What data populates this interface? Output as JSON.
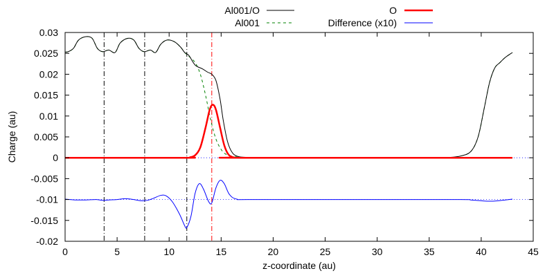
{
  "chart_data": {
    "type": "line",
    "title": "",
    "xlabel": "z-coordinate (au)",
    "ylabel": "Charge (au)",
    "xlim": [
      0,
      45
    ],
    "ylim": [
      -0.02,
      0.03
    ],
    "xticks": [
      0,
      5,
      10,
      15,
      20,
      25,
      30,
      35,
      40,
      45
    ],
    "xtick_labels": [
      "0",
      "5",
      "10",
      "15",
      "20",
      "25",
      "30",
      "35",
      "40",
      "45"
    ],
    "yticks": [
      -0.02,
      -0.015,
      -0.01,
      -0.005,
      0,
      0.005,
      0.01,
      0.015,
      0.02,
      0.025,
      0.03
    ],
    "ytick_labels": [
      "-0.02",
      "-0.015",
      "-0.01",
      "-0.005",
      "0",
      "0.005",
      "0.01",
      "0.015",
      "0.02",
      "0.025",
      "0.03"
    ],
    "grid": false,
    "legend_position": "top",
    "vertical_lines": [
      {
        "x": 3.75,
        "style": "dash-dot",
        "color": "#000000"
      },
      {
        "x": 7.65,
        "style": "dash-dot",
        "color": "#000000"
      },
      {
        "x": 11.7,
        "style": "dash-dot",
        "color": "#000000"
      },
      {
        "x": 14.1,
        "style": "dash-dot",
        "color": "#ff0000"
      }
    ],
    "reference_lines": [
      {
        "y": 0,
        "style": "dotted",
        "color": "#0000ff"
      },
      {
        "y": -0.01,
        "style": "dotted",
        "color": "#0000ff"
      }
    ],
    "series": [
      {
        "name": "Al001/O",
        "color": "#000000",
        "style": "solid",
        "width": 1,
        "points": [
          [
            0,
            0.0253
          ],
          [
            0.3,
            0.0254
          ],
          [
            0.8,
            0.0262
          ],
          [
            1.3,
            0.0282
          ],
          [
            2,
            0.029
          ],
          [
            2.6,
            0.0286
          ],
          [
            3.1,
            0.0262
          ],
          [
            3.6,
            0.0254
          ],
          [
            4.2,
            0.0258
          ],
          [
            4.8,
            0.0252
          ],
          [
            5.3,
            0.0275
          ],
          [
            6,
            0.0286
          ],
          [
            6.6,
            0.0282
          ],
          [
            7.1,
            0.0262
          ],
          [
            7.6,
            0.0254
          ],
          [
            8.2,
            0.0258
          ],
          [
            8.7,
            0.0252
          ],
          [
            9.2,
            0.0272
          ],
          [
            9.8,
            0.0282
          ],
          [
            10.5,
            0.0278
          ],
          [
            11.1,
            0.0265
          ],
          [
            11.5,
            0.0252
          ],
          [
            11.9,
            0.0245
          ],
          [
            12.5,
            0.0222
          ],
          [
            13.2,
            0.0213
          ],
          [
            13.7,
            0.0205
          ],
          [
            14.1,
            0.02
          ],
          [
            14.5,
            0.0185
          ],
          [
            14.9,
            0.014
          ],
          [
            15.2,
            0.009
          ],
          [
            15.6,
            0.004
          ],
          [
            16,
            0.0015
          ],
          [
            16.5,
            0.0004
          ],
          [
            17.5,
            0.0001
          ],
          [
            20,
            0
          ],
          [
            30,
            0
          ],
          [
            36,
            0
          ],
          [
            37,
            0.0001
          ],
          [
            38,
            0.0004
          ],
          [
            39,
            0.0015
          ],
          [
            39.7,
            0.005
          ],
          [
            40.3,
            0.012
          ],
          [
            40.8,
            0.018
          ],
          [
            41.3,
            0.0215
          ],
          [
            41.8,
            0.0228
          ],
          [
            42.3,
            0.024
          ],
          [
            43,
            0.0252
          ]
        ]
      },
      {
        "name": "Al001",
        "color": "#008000",
        "style": "dashed",
        "width": 1,
        "points": [
          [
            0,
            0.0253
          ],
          [
            0.3,
            0.0254
          ],
          [
            0.8,
            0.0262
          ],
          [
            1.3,
            0.0282
          ],
          [
            2,
            0.029
          ],
          [
            2.6,
            0.0286
          ],
          [
            3.1,
            0.0262
          ],
          [
            3.6,
            0.0254
          ],
          [
            4.2,
            0.0258
          ],
          [
            4.8,
            0.0252
          ],
          [
            5.3,
            0.0275
          ],
          [
            6,
            0.0286
          ],
          [
            6.6,
            0.0282
          ],
          [
            7.1,
            0.0262
          ],
          [
            7.6,
            0.0254
          ],
          [
            8.2,
            0.0258
          ],
          [
            8.7,
            0.0252
          ],
          [
            9.2,
            0.0272
          ],
          [
            9.8,
            0.0282
          ],
          [
            10.5,
            0.0278
          ],
          [
            11.1,
            0.0265
          ],
          [
            11.5,
            0.0252
          ],
          [
            11.9,
            0.0243
          ],
          [
            12.5,
            0.0228
          ],
          [
            13,
            0.02
          ],
          [
            13.5,
            0.015
          ],
          [
            14,
            0.009
          ],
          [
            14.5,
            0.0045
          ],
          [
            15,
            0.002
          ],
          [
            15.5,
            0.0008
          ],
          [
            16.5,
            0.0002
          ],
          [
            18,
            0
          ],
          [
            30,
            0
          ],
          [
            36,
            0
          ],
          [
            37,
            0.0001
          ],
          [
            38,
            0.0004
          ],
          [
            39,
            0.0015
          ],
          [
            39.7,
            0.005
          ],
          [
            40.3,
            0.012
          ],
          [
            40.8,
            0.018
          ],
          [
            41.3,
            0.0215
          ],
          [
            41.8,
            0.0228
          ],
          [
            42.3,
            0.024
          ],
          [
            43,
            0.0252
          ]
        ]
      },
      {
        "name": "O",
        "color": "#ff0000",
        "style": "solid",
        "width": 2.5,
        "points": [
          [
            0,
            0
          ],
          [
            11.5,
            0
          ],
          [
            12,
            0.0001
          ],
          [
            12.5,
            0.0006
          ],
          [
            13,
            0.0025
          ],
          [
            13.5,
            0.0072
          ],
          [
            13.9,
            0.0115
          ],
          [
            14.2,
            0.0127
          ],
          [
            14.5,
            0.0115
          ],
          [
            14.9,
            0.0072
          ],
          [
            15.3,
            0.003
          ],
          [
            15.7,
            0.0008
          ],
          [
            16.2,
            0.0001
          ],
          [
            17,
            0
          ],
          [
            43,
            0
          ]
        ]
      },
      {
        "name": "Difference (x10)",
        "color": "#0000ff",
        "style": "solid",
        "width": 1,
        "points": [
          [
            0,
            -0.0099
          ],
          [
            1,
            -0.0101
          ],
          [
            2,
            -0.0101
          ],
          [
            3,
            -0.01
          ],
          [
            3.6,
            -0.0102
          ],
          [
            4.2,
            -0.0101
          ],
          [
            5,
            -0.01
          ],
          [
            5.8,
            -0.0098
          ],
          [
            6.6,
            -0.01
          ],
          [
            7.3,
            -0.0103
          ],
          [
            7.9,
            -0.0102
          ],
          [
            8.5,
            -0.0097
          ],
          [
            9.2,
            -0.009
          ],
          [
            9.7,
            -0.0091
          ],
          [
            10.3,
            -0.0105
          ],
          [
            11,
            -0.0135
          ],
          [
            11.5,
            -0.0163
          ],
          [
            11.7,
            -0.0167
          ],
          [
            12.1,
            -0.014
          ],
          [
            12.5,
            -0.0085
          ],
          [
            12.9,
            -0.0062
          ],
          [
            13.3,
            -0.0075
          ],
          [
            13.8,
            -0.0105
          ],
          [
            14.1,
            -0.0108
          ],
          [
            14.5,
            -0.0072
          ],
          [
            14.9,
            -0.0054
          ],
          [
            15.3,
            -0.0062
          ],
          [
            15.8,
            -0.0088
          ],
          [
            16.5,
            -0.0099
          ],
          [
            18,
            -0.01
          ],
          [
            30,
            -0.01
          ],
          [
            38,
            -0.01
          ],
          [
            39,
            -0.0101
          ],
          [
            40,
            -0.0103
          ],
          [
            41,
            -0.0104
          ],
          [
            42,
            -0.0102
          ],
          [
            43,
            -0.0099
          ]
        ]
      }
    ]
  }
}
